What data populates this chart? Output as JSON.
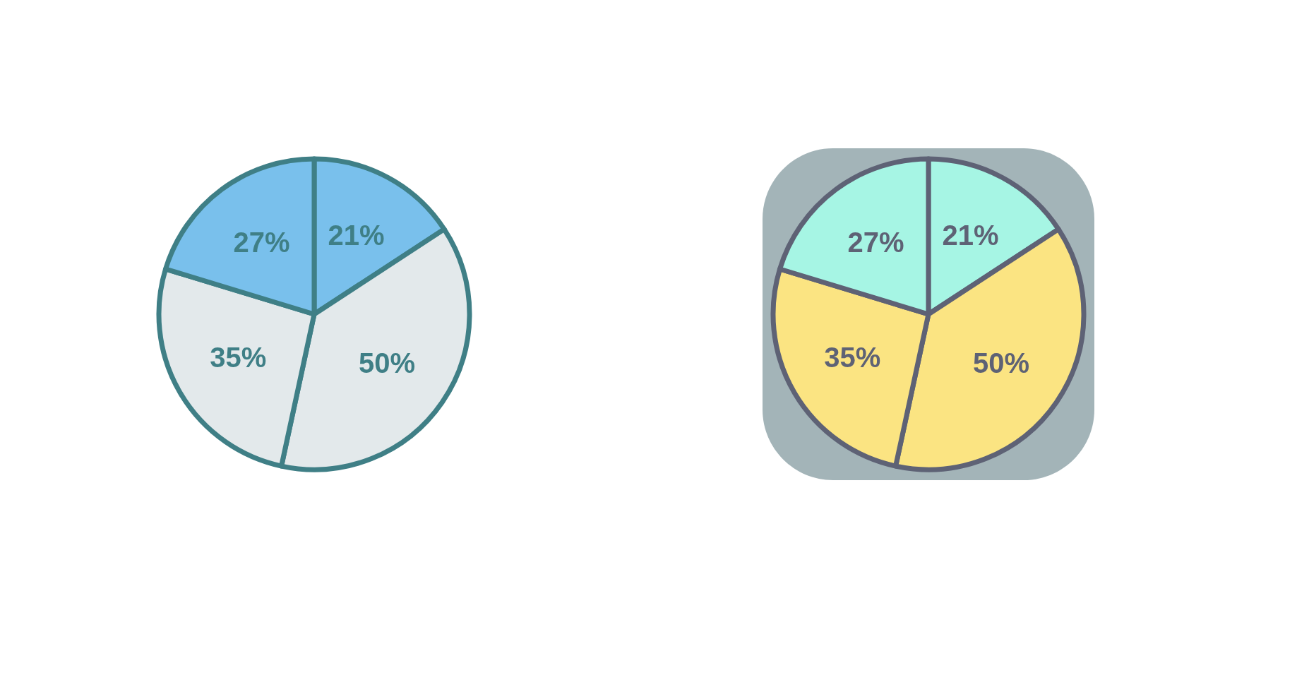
{
  "chart_data": [
    {
      "type": "pie",
      "categories": [
        null,
        null,
        null,
        null
      ],
      "values": [
        21,
        50,
        35,
        27
      ],
      "colors": [
        "#79c0ec",
        "#e3e9eb",
        "#e3e9eb",
        "#79c0ec"
      ],
      "value_labels": [
        "21%",
        "50%",
        "35%",
        "27%"
      ]
    },
    {
      "type": "pie",
      "categories": [
        null,
        null,
        null,
        null
      ],
      "values": [
        21,
        50,
        35,
        27
      ],
      "colors": [
        "#a6f5e4",
        "#fbe482",
        "#fbe482",
        "#a6f5e4"
      ],
      "value_labels": [
        "21%",
        "50%",
        "35%",
        "27%"
      ]
    }
  ]
}
